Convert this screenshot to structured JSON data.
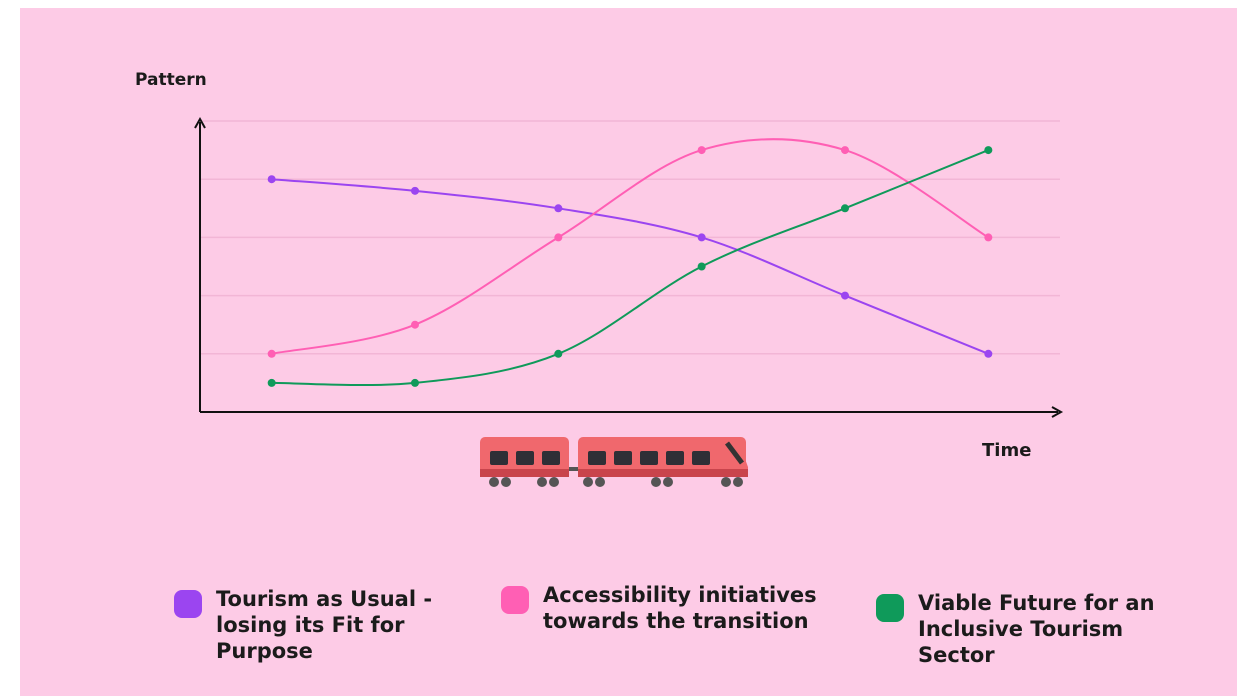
{
  "chart_data": {
    "type": "line",
    "y_label": "Pattern",
    "x_label": "Time",
    "categories": [
      null,
      null,
      null,
      null,
      null,
      null
    ],
    "ylim": [
      0,
      5
    ],
    "grid_lines": [
      1,
      2,
      3,
      4,
      5
    ],
    "grid": true,
    "series": [
      {
        "name": "Tourism as Usual - losing its Fit for Purpose",
        "color": "#9b45f0",
        "values": [
          4,
          3.8,
          3.5,
          3,
          2,
          1
        ]
      },
      {
        "name": "Accessibility initiatives towards the transition",
        "color": "#ff5fb4",
        "values": [
          1,
          1.5,
          3,
          4.5,
          4.5,
          3
        ]
      },
      {
        "name": "Viable Future for an Inclusive Tourism Sector",
        "color": "#0f9a5a",
        "values": [
          0.5,
          0.5,
          1,
          2.5,
          3.5,
          4.5
        ]
      }
    ]
  }
}
